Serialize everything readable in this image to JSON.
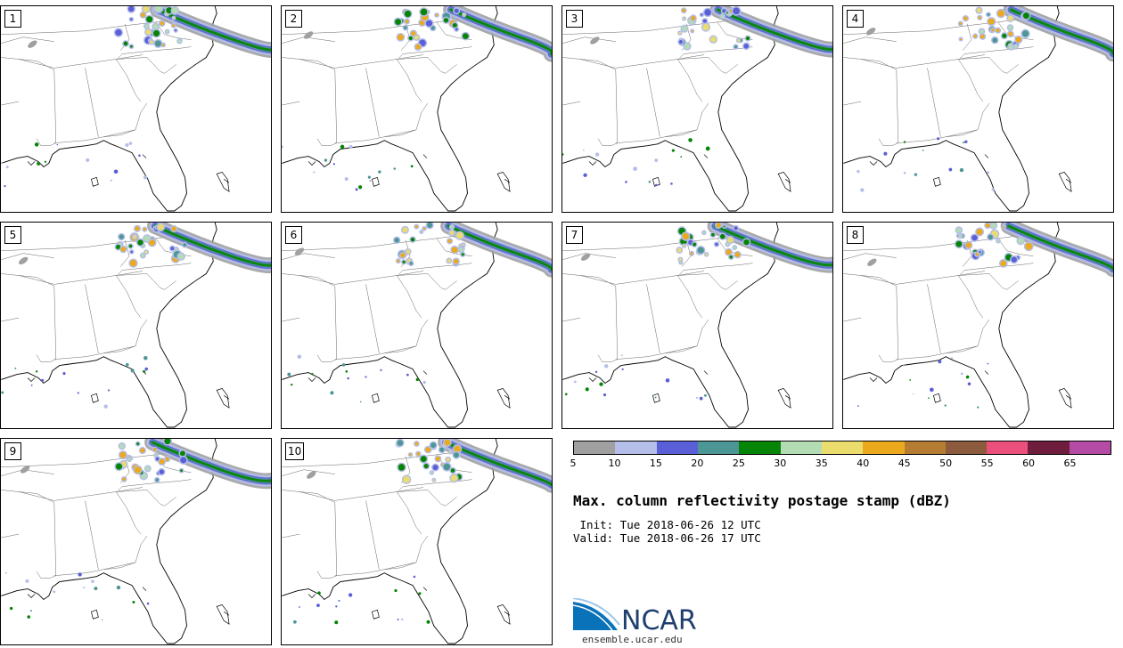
{
  "panels": [
    {
      "label": "1"
    },
    {
      "label": "2"
    },
    {
      "label": "3"
    },
    {
      "label": "4"
    },
    {
      "label": "5"
    },
    {
      "label": "6"
    },
    {
      "label": "7"
    },
    {
      "label": "8"
    },
    {
      "label": "9"
    },
    {
      "label": "10"
    }
  ],
  "legend": {
    "colors": [
      "#a0a0a0",
      "#b4bee8",
      "#5a5fd7",
      "#4c9696",
      "#068406",
      "#b4dcb4",
      "#ebdc6e",
      "#ebaa1e",
      "#b47d32",
      "#8c5a3c",
      "#eb507d",
      "#6e1e3c",
      "#b44ba5"
    ],
    "labels": [
      "5",
      "10",
      "15",
      "20",
      "25",
      "30",
      "35",
      "40",
      "45",
      "50",
      "55",
      "60",
      "65"
    ]
  },
  "title": "Max. column reflectivity postage stamp (dBZ)",
  "init_line": " Init: Tue 2018-06-26 12 UTC",
  "valid_line": "Valid: Tue 2018-06-26 17 UTC",
  "logo": {
    "name": "NCAR",
    "url": "ensemble.ucar.edu"
  }
}
